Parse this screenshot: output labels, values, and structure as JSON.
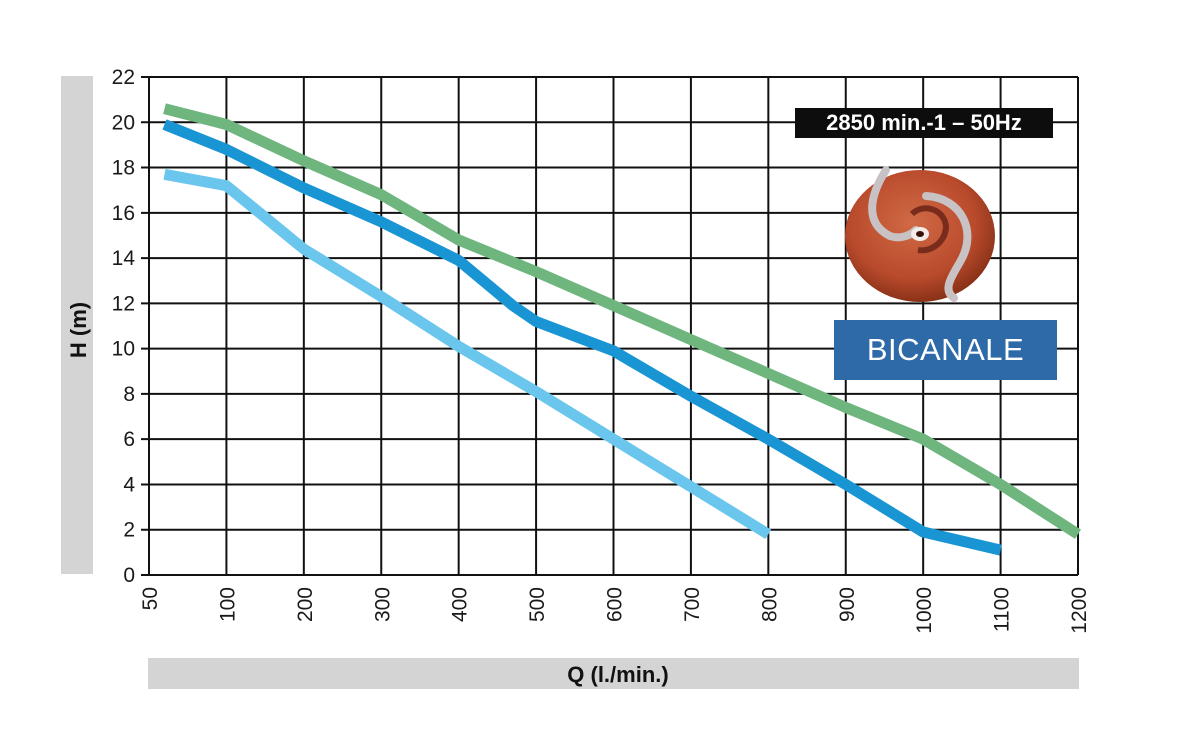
{
  "chart_data": {
    "type": "line",
    "xlabel": "Q (l./min.)",
    "ylabel": "H (m)",
    "x_ticks": [
      50,
      100,
      200,
      300,
      400,
      500,
      600,
      700,
      800,
      900,
      1000,
      1100,
      1200
    ],
    "y_ticks": [
      0,
      2,
      4,
      6,
      8,
      10,
      12,
      14,
      16,
      18,
      20,
      22
    ],
    "xlim": [
      50,
      1200
    ],
    "ylim": [
      0,
      22
    ],
    "grid": true,
    "annotation": "2850 min.-1 – 50Hz",
    "label_box": "BICANALE",
    "series": [
      {
        "color": "#6fb57e",
        "points": [
          [
            60,
            20.6
          ],
          [
            100,
            19.9
          ],
          [
            200,
            18.3
          ],
          [
            300,
            16.8
          ],
          [
            400,
            14.8
          ],
          [
            500,
            13.4
          ],
          [
            600,
            11.9
          ],
          [
            700,
            10.4
          ],
          [
            800,
            8.9
          ],
          [
            900,
            7.4
          ],
          [
            1000,
            6.0
          ],
          [
            1100,
            4.0
          ],
          [
            1200,
            1.8
          ]
        ]
      },
      {
        "color": "#1a95d4",
        "points": [
          [
            60,
            19.9
          ],
          [
            100,
            18.8
          ],
          [
            200,
            17.1
          ],
          [
            300,
            15.6
          ],
          [
            400,
            13.9
          ],
          [
            470,
            11.9
          ],
          [
            500,
            11.2
          ],
          [
            600,
            9.9
          ],
          [
            700,
            7.9
          ],
          [
            800,
            6.0
          ],
          [
            900,
            4.0
          ],
          [
            1000,
            1.9
          ],
          [
            1100,
            1.1
          ]
        ]
      },
      {
        "color": "#6ac6ec",
        "points": [
          [
            60,
            17.7
          ],
          [
            100,
            17.2
          ],
          [
            200,
            14.4
          ],
          [
            300,
            12.3
          ],
          [
            400,
            10.1
          ],
          [
            500,
            8.1
          ],
          [
            600,
            6.0
          ],
          [
            700,
            3.9
          ],
          [
            800,
            1.8
          ]
        ]
      }
    ]
  }
}
